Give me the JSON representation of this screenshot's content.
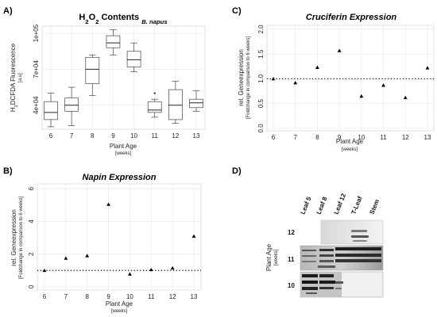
{
  "chart_data": [
    {
      "panel": "A)",
      "type": "box",
      "title_parts": [
        "H",
        "2",
        "O",
        "2",
        " Contents ",
        "B. napus"
      ],
      "categories": [
        "6",
        "7",
        "8",
        "9",
        "10",
        "11",
        "12",
        "13"
      ],
      "boxes": [
        {
          "min": 22000,
          "q1": 28000,
          "median": 34000,
          "q3": 43000,
          "max": 50000
        },
        {
          "min": 23000,
          "q1": 35000,
          "median": 40000,
          "q3": 46000,
          "max": 55000
        },
        {
          "min": 48000,
          "q1": 58000,
          "median": 70000,
          "q3": 80000,
          "max": 82000
        },
        {
          "min": 82000,
          "q1": 88000,
          "median": 92000,
          "q3": 98000,
          "max": 103000
        },
        {
          "min": 68000,
          "q1": 72000,
          "median": 78000,
          "q3": 85000,
          "max": 92000
        },
        {
          "min": 30000,
          "q1": 34000,
          "median": 36000,
          "q3": 43000,
          "max": 45000,
          "outliers": [
            50000
          ]
        },
        {
          "min": 25000,
          "q1": 28000,
          "median": 40000,
          "q3": 53000,
          "max": 60000
        },
        {
          "min": 35000,
          "q1": 38000,
          "median": 42000,
          "q3": 45000,
          "max": 52000
        }
      ],
      "yticks": [
        "4e+04",
        "7e+04",
        "1e+05"
      ],
      "ytick_values": [
        40000,
        70000,
        100000
      ],
      "ylim": [
        20000,
        106000
      ],
      "ylabel_parts": [
        "H",
        "2",
        "DCFDA Fluorescence"
      ],
      "ylabel_sub": "[a.u]",
      "xlabel": "Plant Age",
      "xlabel_sub": "[weeks]",
      "grid": true
    },
    {
      "panel": "B)",
      "type": "scatter",
      "title": "Napin Expression",
      "categories": [
        "6",
        "7",
        "8",
        "9",
        "10",
        "11",
        "12",
        "13"
      ],
      "values": [
        1.0,
        1.75,
        1.9,
        5.05,
        0.78,
        1.05,
        1.15,
        3.1
      ],
      "reference_line": 1.0,
      "yticks": [
        "0",
        "2",
        "4",
        "6"
      ],
      "ytick_values": [
        0,
        2,
        4,
        6
      ],
      "ylim": [
        -0.2,
        6.3
      ],
      "ylabel": "rel. Geneexpression",
      "ylabel_sub": "[Foldchange in comparison to 6 weeks]",
      "xlabel": "Plant Age",
      "xlabel_sub": "[weeks]",
      "grid": true
    },
    {
      "panel": "C)",
      "type": "scatter",
      "title": "Cruciferin Expression",
      "categories": [
        "6",
        "7",
        "8",
        "9",
        "10",
        "11",
        "12",
        "13"
      ],
      "values": [
        1.0,
        0.92,
        1.23,
        1.57,
        0.65,
        0.87,
        0.62,
        1.22
      ],
      "reference_line": 1.0,
      "yticks": [
        "0.0",
        "0.5",
        "1.0",
        "1.5",
        "2.0"
      ],
      "ytick_values": [
        0,
        0.5,
        1.0,
        1.5,
        2.0
      ],
      "ylim": [
        -0.05,
        2.08
      ],
      "ylabel": "rel. Geneexpression",
      "ylabel_sub": "[Foldchange in comparison to 6 weeks]",
      "xlabel": "Plant Age",
      "xlabel_sub": "[weeks]",
      "grid": true
    }
  ],
  "blot": {
    "panel": "D)",
    "columns": [
      "Leaf 5",
      "Leaf 8",
      "Leaf 12",
      "T-Leaf",
      "Stem"
    ],
    "rows": [
      "12",
      "11",
      "10"
    ],
    "ylabel": "Plant Age",
    "ylabel_sub": "[weeks]"
  }
}
